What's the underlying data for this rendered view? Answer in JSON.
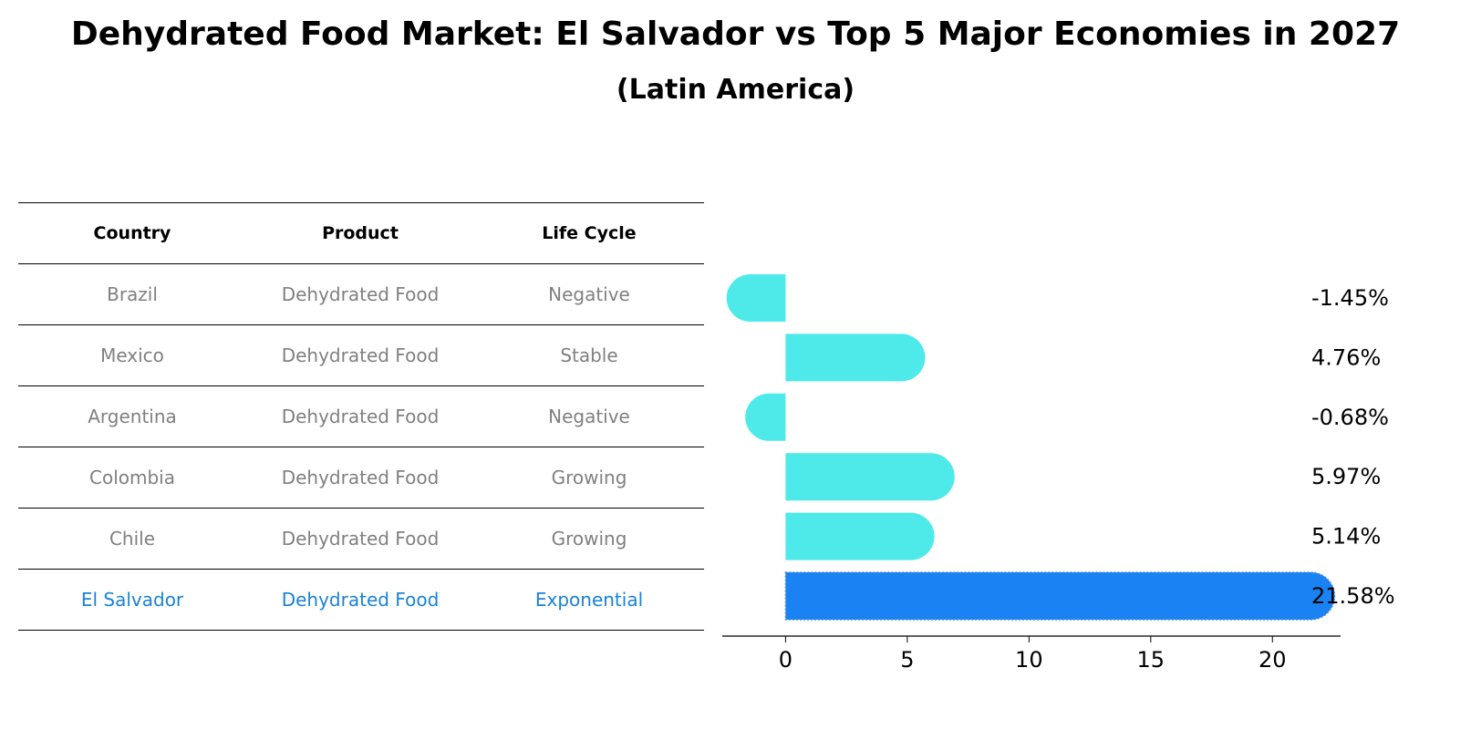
{
  "title": "Dehydrated Food Market: El Salvador vs Top 5 Major Economies in 2027",
  "subtitle": "(Latin America)",
  "table": {
    "headers": [
      "Country",
      "Product",
      "Life Cycle"
    ],
    "rows": [
      [
        "Brazil",
        "Dehydrated Food",
        "Negative"
      ],
      [
        "Mexico",
        "Dehydrated Food",
        "Stable"
      ],
      [
        "Argentina",
        "Dehydrated Food",
        "Negative"
      ],
      [
        "Colombia",
        "Dehydrated Food",
        "Growing"
      ],
      [
        "Chile",
        "Dehydrated Food",
        "Growing"
      ],
      [
        "El Salvador",
        "Dehydrated Food",
        "Exponential"
      ]
    ],
    "highlight_row": "El Salvador"
  },
  "chart_data": {
    "type": "bar",
    "orientation": "horizontal",
    "categories": [
      "Brazil",
      "Mexico",
      "Argentina",
      "Colombia",
      "Chile",
      "El Salvador"
    ],
    "values": [
      -1.45,
      4.76,
      -0.68,
      5.97,
      5.14,
      21.58
    ],
    "value_labels": [
      "-1.45%",
      "4.76%",
      "-0.68%",
      "5.97%",
      "5.14%",
      "21.58%"
    ],
    "xlim": [
      -2.6,
      22.8
    ],
    "xticks": [
      0,
      5,
      10,
      15,
      20
    ],
    "grid": false,
    "colors": {
      "default": "#4eeaea",
      "highlight": "#1a82f2",
      "table_text": "#808080",
      "table_highlight": "#1a82d6"
    }
  }
}
